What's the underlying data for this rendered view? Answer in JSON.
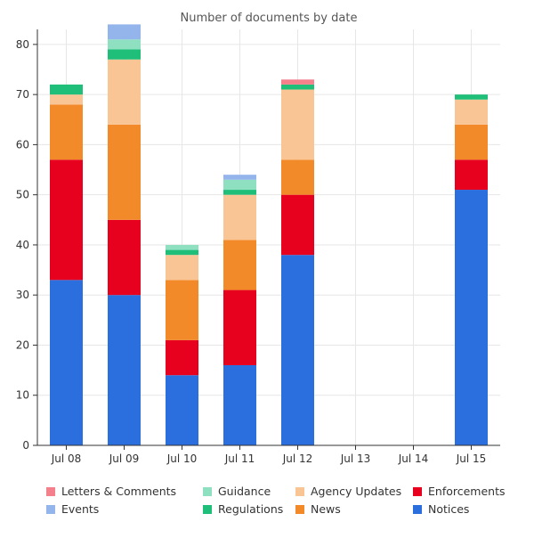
{
  "chart_data": {
    "type": "bar",
    "stacked": true,
    "title": "Number of documents by date",
    "xlabel": "",
    "ylabel": "",
    "ylim": [
      0,
      83
    ],
    "yticks": [
      0,
      10,
      20,
      30,
      40,
      50,
      60,
      70,
      80
    ],
    "grid": true,
    "legend_position": "bottom",
    "categories": [
      "Jul 08",
      "Jul 09",
      "Jul 10",
      "Jul 11",
      "Jul 12",
      "Jul 13",
      "Jul 14",
      "Jul 15"
    ],
    "series": [
      {
        "name": "Notices",
        "color": "#2b6fde",
        "values": [
          33,
          30,
          14,
          16,
          38,
          0,
          0,
          51
        ]
      },
      {
        "name": "Enforcements",
        "color": "#e8001f",
        "values": [
          24,
          15,
          7,
          15,
          12,
          0,
          0,
          6
        ]
      },
      {
        "name": "News",
        "color": "#f28a2a",
        "values": [
          11,
          19,
          12,
          10,
          7,
          0,
          0,
          7
        ]
      },
      {
        "name": "Agency Updates",
        "color": "#f9c595",
        "values": [
          2,
          13,
          5,
          9,
          14,
          0,
          0,
          5
        ]
      },
      {
        "name": "Regulations",
        "color": "#1fbf79",
        "values": [
          2,
          2,
          1,
          1,
          1,
          0,
          0,
          1
        ]
      },
      {
        "name": "Guidance",
        "color": "#8fe0c1",
        "values": [
          0,
          2,
          1,
          2,
          0,
          0,
          0,
          0
        ]
      },
      {
        "name": "Events",
        "color": "#94b5ec",
        "values": [
          0,
          3,
          0,
          1,
          0,
          0,
          0,
          0
        ]
      },
      {
        "name": "Letters & Comments",
        "color": "#f4808c",
        "values": [
          0,
          0,
          0,
          0,
          1,
          0,
          0,
          0
        ]
      }
    ],
    "legend_order": [
      "Letters & Comments",
      "Guidance",
      "Agency Updates",
      "Enforcements",
      "Events",
      "Regulations",
      "News",
      "Notices"
    ]
  }
}
